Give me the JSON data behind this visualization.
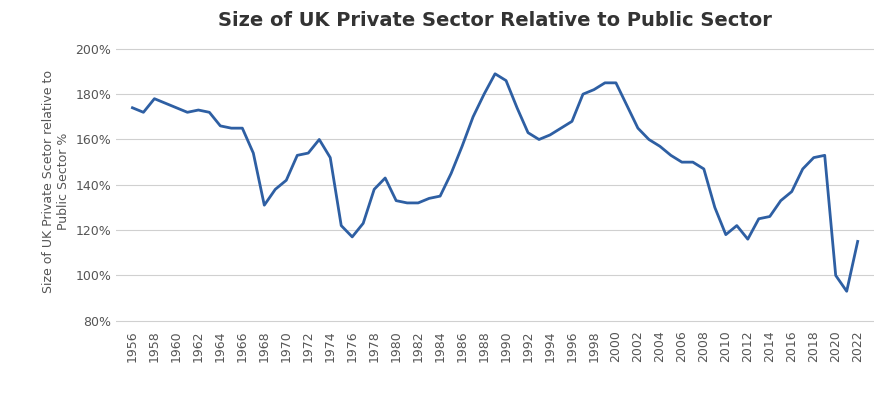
{
  "title": "Size of UK Private Sector Relative to Public Sector",
  "ylabel": "Size of UK Private Scetor relative to\nPublic Sector %",
  "line_color": "#2E5FA3",
  "line_width": 2.0,
  "background_color": "#FFFFFF",
  "years": [
    1956,
    1957,
    1958,
    1959,
    1960,
    1961,
    1962,
    1963,
    1964,
    1965,
    1966,
    1967,
    1968,
    1969,
    1970,
    1971,
    1972,
    1973,
    1974,
    1975,
    1976,
    1977,
    1978,
    1979,
    1980,
    1981,
    1982,
    1983,
    1984,
    1985,
    1986,
    1987,
    1988,
    1989,
    1990,
    1991,
    1992,
    1993,
    1994,
    1995,
    1996,
    1997,
    1998,
    1999,
    2000,
    2001,
    2002,
    2003,
    2004,
    2005,
    2006,
    2007,
    2008,
    2009,
    2010,
    2011,
    2012,
    2013,
    2014,
    2015,
    2016,
    2017,
    2018,
    2019,
    2020,
    2021,
    2022
  ],
  "values": [
    1.74,
    1.72,
    1.78,
    1.76,
    1.74,
    1.72,
    1.73,
    1.72,
    1.66,
    1.65,
    1.65,
    1.54,
    1.31,
    1.38,
    1.42,
    1.53,
    1.54,
    1.6,
    1.52,
    1.22,
    1.17,
    1.23,
    1.38,
    1.43,
    1.33,
    1.32,
    1.32,
    1.34,
    1.35,
    1.45,
    1.57,
    1.7,
    1.8,
    1.89,
    1.86,
    1.74,
    1.63,
    1.6,
    1.62,
    1.65,
    1.68,
    1.8,
    1.82,
    1.85,
    1.85,
    1.75,
    1.65,
    1.6,
    1.57,
    1.53,
    1.5,
    1.5,
    1.47,
    1.3,
    1.18,
    1.22,
    1.16,
    1.25,
    1.26,
    1.33,
    1.37,
    1.47,
    1.52,
    1.53,
    1.0,
    0.93,
    1.15
  ],
  "yticks": [
    0.8,
    1.0,
    1.2,
    1.4,
    1.6,
    1.8,
    2.0
  ],
  "ylim_lo": 0.78,
  "ylim_hi": 2.05,
  "xlim_lo": 1954.5,
  "xlim_hi": 2023.5,
  "title_fontsize": 14,
  "ylabel_fontsize": 9,
  "tick_fontsize": 9,
  "grid_color": "#D0D0D0",
  "tick_color": "#555555",
  "title_color": "#333333"
}
